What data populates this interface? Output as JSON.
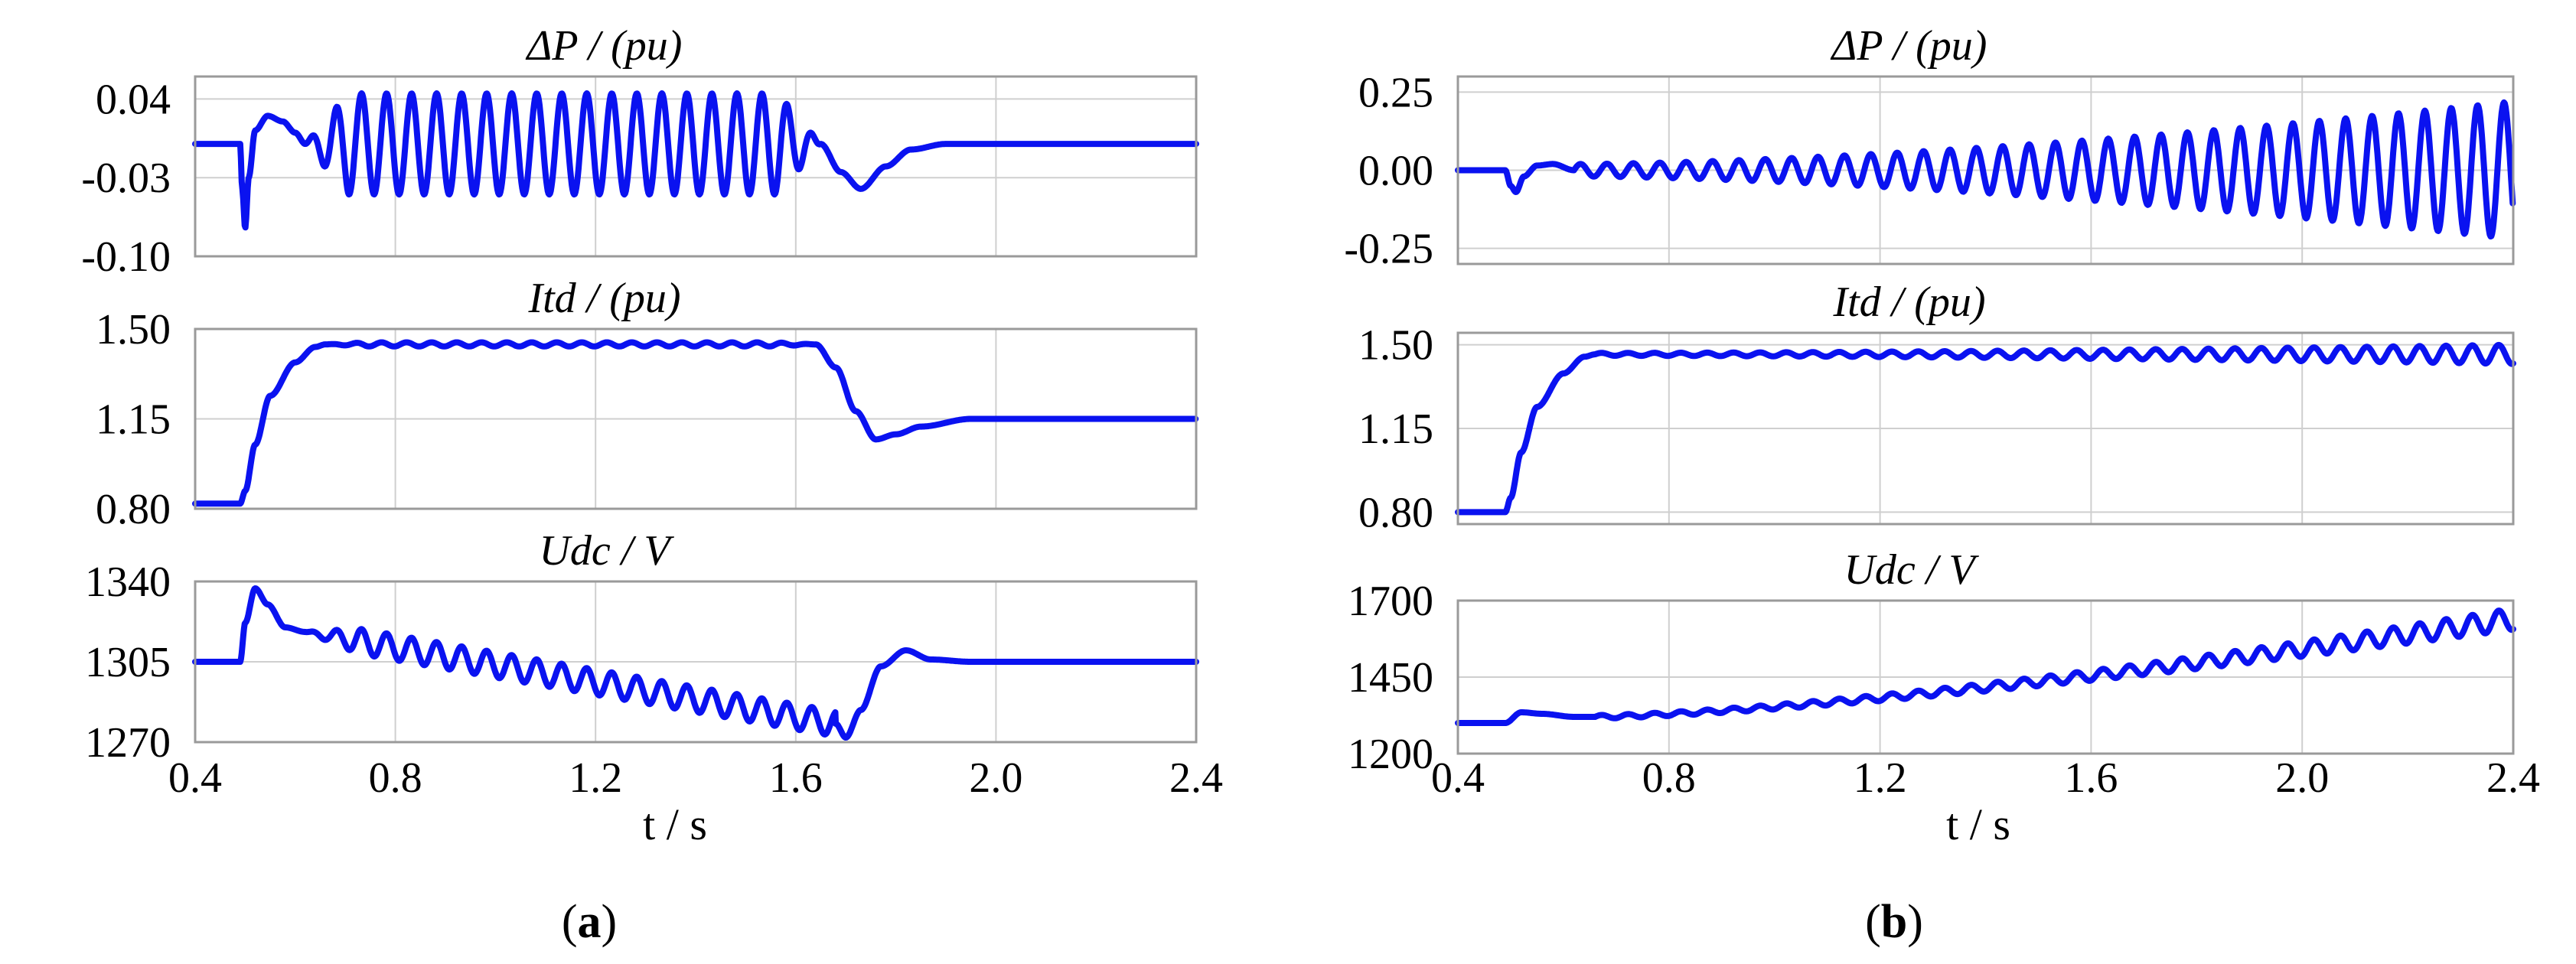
{
  "chart_data": [
    {
      "panel": "a",
      "sublabel": "a",
      "type": "line",
      "xlabel": "t / s",
      "xlim": [
        0.4,
        2.4
      ],
      "xticks": [
        "0.4",
        "0.8",
        "1.2",
        "1.6",
        "2.0",
        "2.4"
      ],
      "grid": true,
      "subplots": [
        {
          "id": "dp",
          "title": "ΔP / (pu)",
          "ylim": [
            -0.1,
            0.06
          ],
          "yticks": [
            [
              "0.04",
              0.04
            ],
            [
              "-0.03",
              -0.03
            ],
            [
              "-0.10",
              -0.1
            ]
          ],
          "series": [
            {
              "color": "#0a12f0",
              "baseline": 0.0,
              "segments": [
                {
                  "x": [
                    0.4,
                    0.49
                  ],
                  "kind": "flat",
                  "value": 0.0
                },
                {
                  "x": [
                    0.49,
                    0.62
                  ],
                  "kind": "disturbance",
                  "points": [
                    [
                      0.49,
                      0.0
                    ],
                    [
                      0.494,
                      -0.04
                    ],
                    [
                      0.5,
                      -0.075
                    ],
                    [
                      0.507,
                      -0.03
                    ],
                    [
                      0.52,
                      0.012
                    ],
                    [
                      0.545,
                      0.025
                    ],
                    [
                      0.575,
                      0.02
                    ],
                    [
                      0.6,
                      0.01
                    ],
                    [
                      0.62,
                      0.0
                    ]
                  ]
                },
                {
                  "x": [
                    0.62,
                    1.65
                  ],
                  "kind": "oscillation",
                  "center": 0.0,
                  "amplitude": 0.045,
                  "period": 0.05
                },
                {
                  "x": [
                    1.65,
                    2.4
                  ],
                  "kind": "recovery",
                  "points": [
                    [
                      1.65,
                      0.0
                    ],
                    [
                      1.69,
                      -0.025
                    ],
                    [
                      1.73,
                      -0.04
                    ],
                    [
                      1.78,
                      -0.02
                    ],
                    [
                      1.83,
                      -0.005
                    ],
                    [
                      1.9,
                      0.0
                    ],
                    [
                      2.4,
                      0.0
                    ]
                  ]
                }
              ]
            }
          ]
        },
        {
          "id": "itd",
          "title": "Itd / (pu)",
          "ylim": [
            0.8,
            1.5
          ],
          "yticks": [
            [
              "1.50",
              1.5
            ],
            [
              "1.15",
              1.15
            ],
            [
              "0.80",
              0.8
            ]
          ],
          "series": [
            {
              "color": "#0a12f0",
              "segments": [
                {
                  "x": [
                    0.4,
                    0.49
                  ],
                  "kind": "flat",
                  "value": 0.82
                },
                {
                  "x": [
                    0.49,
                    0.66
                  ],
                  "kind": "rise",
                  "points": [
                    [
                      0.49,
                      0.82
                    ],
                    [
                      0.5,
                      0.87
                    ],
                    [
                      0.52,
                      1.05
                    ],
                    [
                      0.55,
                      1.24
                    ],
                    [
                      0.6,
                      1.37
                    ],
                    [
                      0.64,
                      1.43
                    ],
                    [
                      0.66,
                      1.44
                    ]
                  ]
                },
                {
                  "x": [
                    0.66,
                    1.64
                  ],
                  "kind": "oscillation",
                  "center": 1.44,
                  "amplitude": 0.008,
                  "period": 0.05
                },
                {
                  "x": [
                    1.64,
                    2.4
                  ],
                  "kind": "recovery",
                  "points": [
                    [
                      1.64,
                      1.44
                    ],
                    [
                      1.68,
                      1.35
                    ],
                    [
                      1.72,
                      1.18
                    ],
                    [
                      1.76,
                      1.07
                    ],
                    [
                      1.8,
                      1.09
                    ],
                    [
                      1.85,
                      1.12
                    ],
                    [
                      1.95,
                      1.15
                    ],
                    [
                      2.4,
                      1.15
                    ]
                  ]
                }
              ]
            }
          ]
        },
        {
          "id": "udc",
          "title": "Udc / V",
          "ylim": [
            1270,
            1340
          ],
          "yticks": [
            [
              "1340",
              1340
            ],
            [
              "1305",
              1305
            ],
            [
              "1270",
              1270
            ]
          ],
          "series": [
            {
              "color": "#0a12f0",
              "segments": [
                {
                  "x": [
                    0.4,
                    0.49
                  ],
                  "kind": "flat",
                  "value": 1305
                },
                {
                  "x": [
                    0.49,
                    0.62
                  ],
                  "kind": "disturbance",
                  "points": [
                    [
                      0.49,
                      1305
                    ],
                    [
                      0.5,
                      1322
                    ],
                    [
                      0.52,
                      1337
                    ],
                    [
                      0.545,
                      1330
                    ],
                    [
                      0.58,
                      1320
                    ],
                    [
                      0.62,
                      1318
                    ]
                  ]
                },
                {
                  "x": [
                    0.62,
                    1.68
                  ],
                  "kind": "drift",
                  "start": 1318,
                  "end": 1278,
                  "amplitude": 5.5,
                  "period": 0.05
                },
                {
                  "x": [
                    1.68,
                    2.4
                  ],
                  "kind": "recovery",
                  "points": [
                    [
                      1.68,
                      1278
                    ],
                    [
                      1.7,
                      1272
                    ],
                    [
                      1.73,
                      1284
                    ],
                    [
                      1.77,
                      1303
                    ],
                    [
                      1.82,
                      1310
                    ],
                    [
                      1.87,
                      1306
                    ],
                    [
                      1.95,
                      1305
                    ],
                    [
                      2.4,
                      1305
                    ]
                  ]
                }
              ]
            }
          ]
        }
      ]
    },
    {
      "panel": "b",
      "sublabel": "b",
      "type": "line",
      "xlabel": "t / s",
      "xlim": [
        0.4,
        2.4
      ],
      "xticks": [
        "0.4",
        "0.8",
        "1.2",
        "1.6",
        "2.0",
        "2.4"
      ],
      "grid": true,
      "subplots": [
        {
          "id": "dp",
          "title": "ΔP / (pu)",
          "ylim": [
            -0.3,
            0.3
          ],
          "yticks": [
            [
              "0.25",
              0.25
            ],
            [
              "0.00",
              0.0
            ],
            [
              "-0.25",
              -0.25
            ]
          ],
          "series": [
            {
              "color": "#0a12f0",
              "segments": [
                {
                  "x": [
                    0.4,
                    0.49
                  ],
                  "kind": "flat",
                  "value": 0.0
                },
                {
                  "x": [
                    0.49,
                    0.62
                  ],
                  "kind": "disturbance",
                  "points": [
                    [
                      0.49,
                      0.0
                    ],
                    [
                      0.5,
                      -0.05
                    ],
                    [
                      0.51,
                      -0.07
                    ],
                    [
                      0.525,
                      -0.02
                    ],
                    [
                      0.55,
                      0.015
                    ],
                    [
                      0.58,
                      0.02
                    ],
                    [
                      0.62,
                      0.0
                    ]
                  ]
                },
                {
                  "x": [
                    0.62,
                    2.4
                  ],
                  "kind": "growing-oscillation",
                  "center": 0.0,
                  "amplitude_start": 0.02,
                  "amplitude_end": 0.22,
                  "period": 0.05
                }
              ]
            }
          ]
        },
        {
          "id": "itd",
          "title": "Itd / (pu)",
          "ylim": [
            0.75,
            1.55
          ],
          "yticks": [
            [
              "1.50",
              1.5
            ],
            [
              "1.15",
              1.15
            ],
            [
              "0.80",
              0.8
            ]
          ],
          "series": [
            {
              "color": "#0a12f0",
              "segments": [
                {
                  "x": [
                    0.4,
                    0.49
                  ],
                  "kind": "flat",
                  "value": 0.8
                },
                {
                  "x": [
                    0.49,
                    0.66
                  ],
                  "kind": "rise",
                  "points": [
                    [
                      0.49,
                      0.8
                    ],
                    [
                      0.5,
                      0.86
                    ],
                    [
                      0.52,
                      1.05
                    ],
                    [
                      0.55,
                      1.24
                    ],
                    [
                      0.6,
                      1.38
                    ],
                    [
                      0.64,
                      1.45
                    ],
                    [
                      0.66,
                      1.46
                    ]
                  ]
                },
                {
                  "x": [
                    0.66,
                    2.4
                  ],
                  "kind": "growing-oscillation",
                  "center": 1.46,
                  "amplitude_start": 0.006,
                  "amplitude_end": 0.04,
                  "period": 0.05
                }
              ]
            }
          ]
        },
        {
          "id": "udc",
          "title": "Udc / V",
          "ylim": [
            1200,
            1700
          ],
          "yticks": [
            [
              "1700",
              1700
            ],
            [
              "1450",
              1450
            ],
            [
              "1200",
              1200
            ]
          ],
          "series": [
            {
              "color": "#0a12f0",
              "segments": [
                {
                  "x": [
                    0.4,
                    0.49
                  ],
                  "kind": "flat",
                  "value": 1300
                },
                {
                  "x": [
                    0.49,
                    0.66
                  ],
                  "kind": "disturbance",
                  "points": [
                    [
                      0.49,
                      1300
                    ],
                    [
                      0.52,
                      1335
                    ],
                    [
                      0.56,
                      1330
                    ],
                    [
                      0.62,
                      1320
                    ],
                    [
                      0.66,
                      1320
                    ]
                  ]
                },
                {
                  "x": [
                    0.66,
                    2.4
                  ],
                  "kind": "growing-drift",
                  "start": 1320,
                  "end": 1640,
                  "amplitude_start": 6,
                  "amplitude_end": 35,
                  "period": 0.05
                }
              ]
            }
          ]
        }
      ]
    }
  ]
}
